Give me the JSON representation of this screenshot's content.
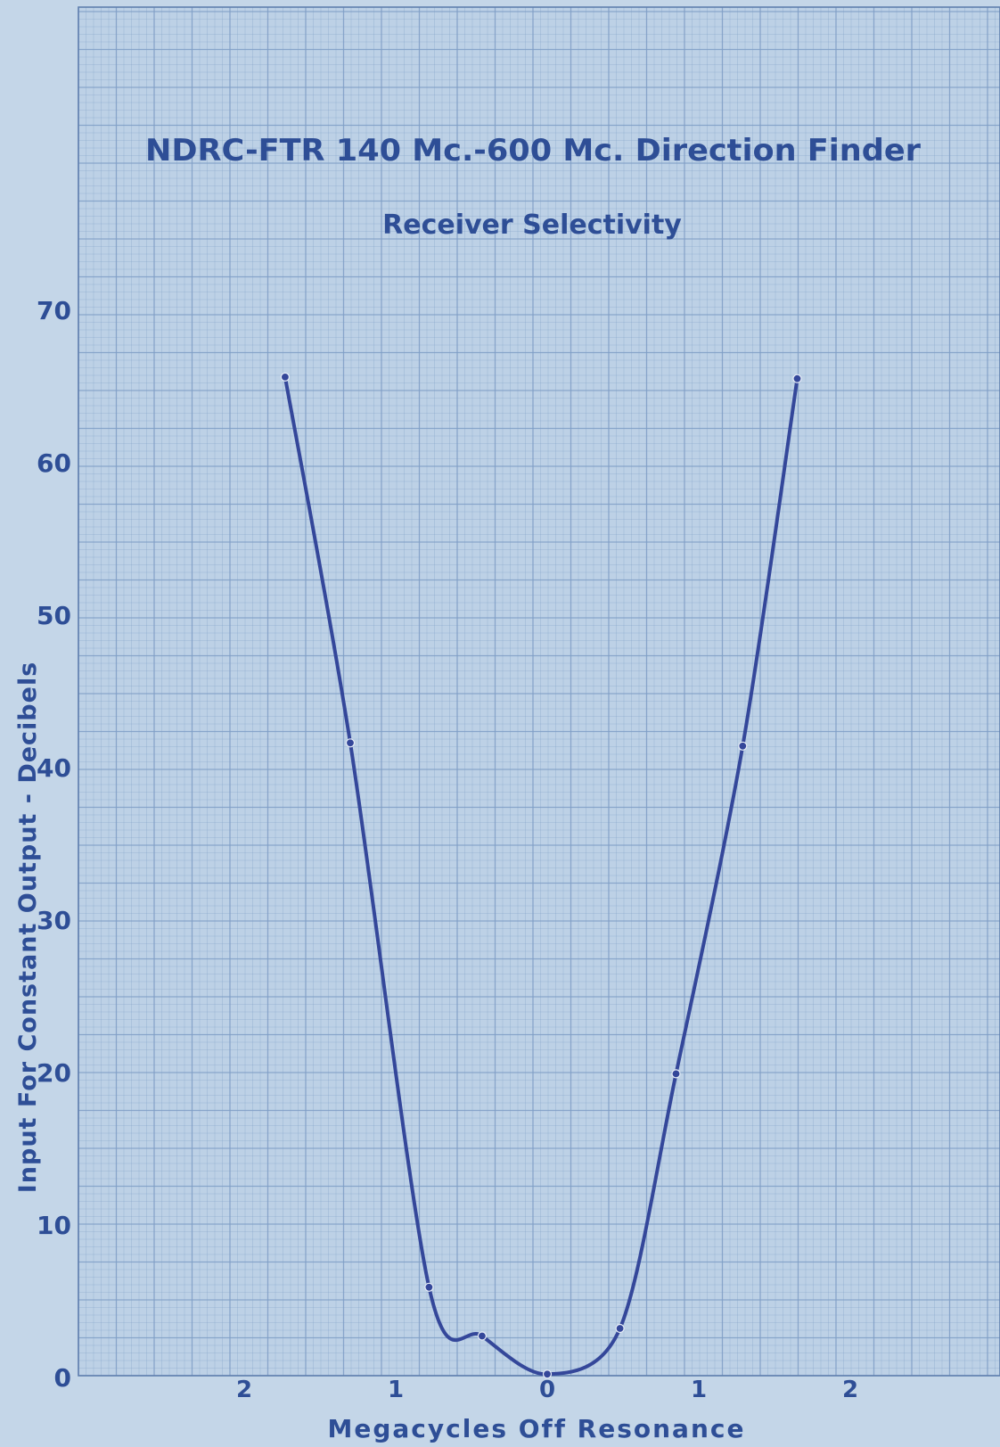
{
  "chart_data": {
    "type": "line",
    "title": "NDRC-FTR 140 Mc.-600 Mc. Direction Finder",
    "subtitle": "Receiver Selectivity",
    "xlabel": "Megacycles Off Resonance",
    "ylabel": "Input For Constant Output - Decibels",
    "xlim": [
      -3.0,
      3.0
    ],
    "ylim": [
      0,
      90
    ],
    "x_ticks": [
      {
        "value": -2,
        "label": "2"
      },
      {
        "value": -1,
        "label": "1"
      },
      {
        "value": 0,
        "label": "0"
      },
      {
        "value": 1,
        "label": "1"
      },
      {
        "value": 2,
        "label": "2"
      }
    ],
    "y_ticks": [
      {
        "value": 0,
        "label": "0"
      },
      {
        "value": 10,
        "label": "10"
      },
      {
        "value": 20,
        "label": "20"
      },
      {
        "value": 30,
        "label": "30"
      },
      {
        "value": 40,
        "label": "40"
      },
      {
        "value": 50,
        "label": "50"
      },
      {
        "value": 60,
        "label": "60"
      },
      {
        "value": 70,
        "label": "70"
      }
    ],
    "grid": true,
    "colors": {
      "paper": "#c4d6e8",
      "grid": "#7f9ec6",
      "curve": "#34479a",
      "text": "#2e4e96"
    },
    "series": [
      {
        "x": [
          -1.73,
          -1.3,
          -0.78,
          -0.43,
          0.0,
          0.48,
          0.85,
          1.29,
          1.65
        ],
        "y": [
          65.5,
          41.5,
          5.8,
          2.6,
          0.1,
          3.1,
          19.8,
          41.3,
          65.4
        ]
      }
    ]
  }
}
